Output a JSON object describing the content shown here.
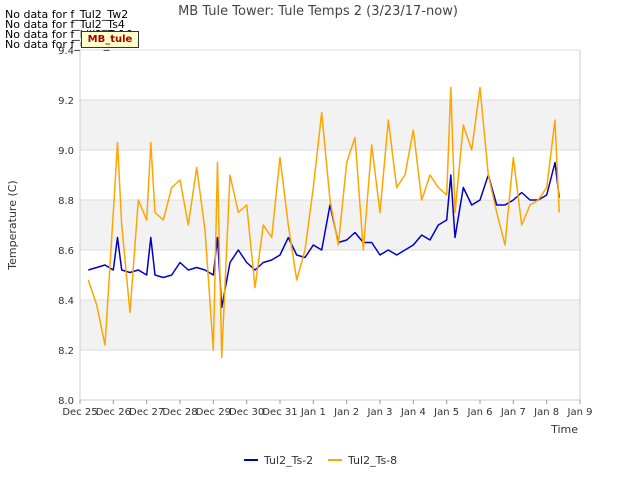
{
  "no_data_messages": [
    "No data for f_Tul2_Tw2",
    "No data for f_Tul2_Ts4",
    "No data for f_kiij2_Ts16",
    "No data for f_uMB_Ts32"
  ],
  "badge_label": "MB_tule",
  "colors": {
    "Tul2_Ts-2": "#0000cc",
    "Tul2_Ts-8": "#ffa500",
    "band": "#f2f2f2",
    "grid": "#dddddd"
  },
  "chart_data": {
    "type": "line",
    "title": "MB Tule Tower: Tule Temps 2 (3/23/17-now)",
    "xlabel": "Time",
    "ylabel": "Temperature (C)",
    "xlim": [
      "2016-12-25",
      "2017-01-09"
    ],
    "ylim": [
      8.0,
      9.4
    ],
    "x_ticks": [
      "Dec 25",
      "Dec 26",
      "Dec 27",
      "Dec 28",
      "Dec 29",
      "Dec 30",
      "Dec 31",
      "Jan 1",
      "Jan 2",
      "Jan 3",
      "Jan 4",
      "Jan 5",
      "Jan 6",
      "Jan 7",
      "Jan 8",
      "Jan 9"
    ],
    "y_ticks": [
      8.0,
      8.2,
      8.4,
      8.6,
      8.8,
      9.0,
      9.2,
      9.4
    ],
    "grid": true,
    "legend_position": "bottom",
    "series": [
      {
        "name": "Tul2_Ts-2",
        "x": [
          "2016-12-25 06:00",
          "2016-12-25 12:00",
          "2016-12-25 18:00",
          "2016-12-26 00:00",
          "2016-12-26 03:00",
          "2016-12-26 06:00",
          "2016-12-26 12:00",
          "2016-12-26 18:00",
          "2016-12-27 00:00",
          "2016-12-27 03:00",
          "2016-12-27 06:00",
          "2016-12-27 12:00",
          "2016-12-27 18:00",
          "2016-12-28 00:00",
          "2016-12-28 06:00",
          "2016-12-28 12:00",
          "2016-12-28 18:00",
          "2016-12-29 00:00",
          "2016-12-29 03:00",
          "2016-12-29 06:00",
          "2016-12-29 12:00",
          "2016-12-29 18:00",
          "2016-12-30 00:00",
          "2016-12-30 06:00",
          "2016-12-30 12:00",
          "2016-12-30 18:00",
          "2016-12-31 00:00",
          "2016-12-31 06:00",
          "2016-12-31 12:00",
          "2016-12-31 18:00",
          "2017-01-01 00:00",
          "2017-01-01 06:00",
          "2017-01-01 12:00",
          "2017-01-01 18:00",
          "2017-01-02 00:00",
          "2017-01-02 06:00",
          "2017-01-02 12:00",
          "2017-01-02 18:00",
          "2017-01-03 00:00",
          "2017-01-03 06:00",
          "2017-01-03 12:00",
          "2017-01-03 18:00",
          "2017-01-04 00:00",
          "2017-01-04 06:00",
          "2017-01-04 12:00",
          "2017-01-04 18:00",
          "2017-01-05 00:00",
          "2017-01-05 03:00",
          "2017-01-05 06:00",
          "2017-01-05 12:00",
          "2017-01-05 18:00",
          "2017-01-06 00:00",
          "2017-01-06 06:00",
          "2017-01-06 12:00",
          "2017-01-06 18:00",
          "2017-01-07 00:00",
          "2017-01-07 06:00",
          "2017-01-07 12:00",
          "2017-01-07 18:00",
          "2017-01-08 00:00",
          "2017-01-08 06:00",
          "2017-01-08 09:00"
        ],
        "y": [
          8.52,
          8.53,
          8.54,
          8.52,
          8.65,
          8.52,
          8.51,
          8.52,
          8.5,
          8.65,
          8.5,
          8.49,
          8.5,
          8.55,
          8.52,
          8.53,
          8.52,
          8.5,
          8.65,
          8.37,
          8.55,
          8.6,
          8.55,
          8.52,
          8.55,
          8.56,
          8.58,
          8.65,
          8.58,
          8.57,
          8.62,
          8.6,
          8.78,
          8.63,
          8.64,
          8.67,
          8.63,
          8.63,
          8.58,
          8.6,
          8.58,
          8.6,
          8.62,
          8.66,
          8.64,
          8.7,
          8.72,
          8.9,
          8.65,
          8.85,
          8.78,
          8.8,
          8.9,
          8.78,
          8.78,
          8.8,
          8.83,
          8.8,
          8.8,
          8.82,
          8.95,
          8.81
        ]
      },
      {
        "name": "Tul2_Ts-8",
        "x": [
          "2016-12-25 06:00",
          "2016-12-25 12:00",
          "2016-12-25 18:00",
          "2016-12-26 00:00",
          "2016-12-26 03:00",
          "2016-12-26 06:00",
          "2016-12-26 12:00",
          "2016-12-26 18:00",
          "2016-12-27 00:00",
          "2016-12-27 03:00",
          "2016-12-27 06:00",
          "2016-12-27 12:00",
          "2016-12-27 18:00",
          "2016-12-28 00:00",
          "2016-12-28 06:00",
          "2016-12-28 12:00",
          "2016-12-28 18:00",
          "2016-12-29 00:00",
          "2016-12-29 03:00",
          "2016-12-29 06:00",
          "2016-12-29 12:00",
          "2016-12-29 18:00",
          "2016-12-30 00:00",
          "2016-12-30 06:00",
          "2016-12-30 12:00",
          "2016-12-30 18:00",
          "2016-12-31 00:00",
          "2016-12-31 06:00",
          "2016-12-31 12:00",
          "2016-12-31 18:00",
          "2017-01-01 00:00",
          "2017-01-01 06:00",
          "2017-01-01 12:00",
          "2017-01-01 18:00",
          "2017-01-02 00:00",
          "2017-01-02 06:00",
          "2017-01-02 12:00",
          "2017-01-02 18:00",
          "2017-01-03 00:00",
          "2017-01-03 06:00",
          "2017-01-03 12:00",
          "2017-01-03 18:00",
          "2017-01-04 00:00",
          "2017-01-04 06:00",
          "2017-01-04 12:00",
          "2017-01-04 18:00",
          "2017-01-05 00:00",
          "2017-01-05 03:00",
          "2017-01-05 06:00",
          "2017-01-05 12:00",
          "2017-01-05 18:00",
          "2017-01-06 00:00",
          "2017-01-06 06:00",
          "2017-01-06 12:00",
          "2017-01-06 18:00",
          "2017-01-07 00:00",
          "2017-01-07 06:00",
          "2017-01-07 12:00",
          "2017-01-07 18:00",
          "2017-01-08 00:00",
          "2017-01-08 06:00",
          "2017-01-08 09:00"
        ],
        "y": [
          8.48,
          8.38,
          8.22,
          8.75,
          9.03,
          8.7,
          8.35,
          8.8,
          8.72,
          9.03,
          8.75,
          8.72,
          8.85,
          8.88,
          8.7,
          8.93,
          8.68,
          8.2,
          8.95,
          8.17,
          8.9,
          8.75,
          8.78,
          8.45,
          8.7,
          8.65,
          8.97,
          8.7,
          8.48,
          8.6,
          8.85,
          9.15,
          8.8,
          8.62,
          8.95,
          9.05,
          8.6,
          9.02,
          8.75,
          9.12,
          8.85,
          8.9,
          9.08,
          8.8,
          8.9,
          8.85,
          8.82,
          9.25,
          8.75,
          9.1,
          9.0,
          9.25,
          8.9,
          8.75,
          8.62,
          8.97,
          8.7,
          8.78,
          8.8,
          8.85,
          9.12,
          8.75
        ]
      }
    ]
  }
}
